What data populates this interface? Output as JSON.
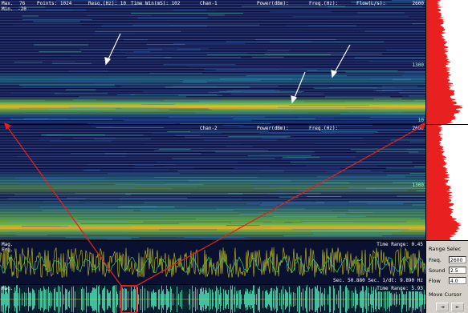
{
  "panel1": {
    "max_label": "Max.",
    "max_value": "76",
    "min_label": "Min.",
    "min_value": "-20",
    "points": "Points: 1024",
    "reso": "Reso.(Hz): 10",
    "time_win": "Time Win(mS): 102",
    "channel": "Chan-1",
    "power": "Power(dBm):",
    "freq": "Freq.(Hz):",
    "flow": "Flow(L/s):",
    "axis_top": "2600",
    "axis_mid": "1300",
    "axis_bottom": "10"
  },
  "panel2": {
    "channel": "Chan-2",
    "power": "Power(dBm):",
    "freq": "Freq.(Hz):",
    "axis_top": "2600",
    "axis_mid": "1300"
  },
  "waveform": {
    "label": "Mag.",
    "sub_label": "Frq.:",
    "time_range": "Time Range: 0.45",
    "status": "Sec. 50.880 Sec. 1/dt: 9.890 Hz"
  },
  "overview": {
    "label": "Mag.",
    "time_range": "Time Range: 5.93"
  },
  "controls": {
    "title": "Range Selec",
    "freq_label": "Freq.",
    "freq_value": "2600",
    "sound_label": "Sound",
    "sound_value": "2.5",
    "flow_label": "Flow",
    "flow_value": "4.0",
    "move_cursor": "Move Cursor",
    "left": "◄",
    "right": "►"
  }
}
